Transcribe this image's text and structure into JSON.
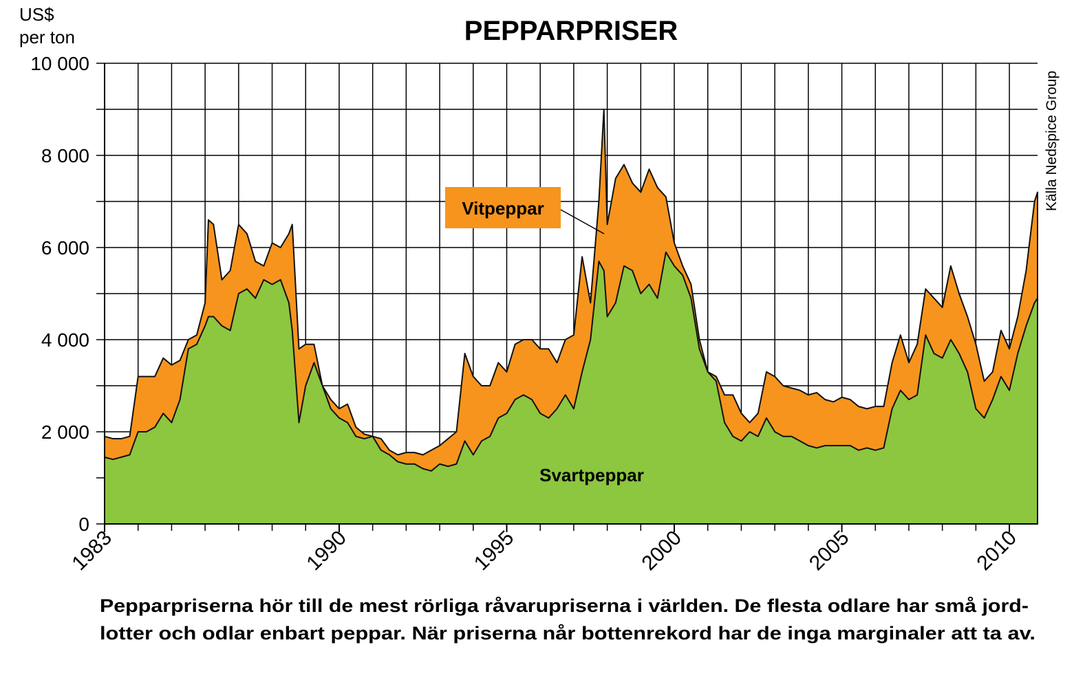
{
  "chart_data": {
    "type": "area",
    "title": "PEPPARPRISER",
    "y_label": [
      "US$",
      "per ton"
    ],
    "source": "Källa Nedspice Group",
    "caption": [
      "Pepparpriserna hör till de mest rörliga råvarupriserna i världen. De flesta odlare har små jord-",
      "lotter och odlar enbart peppar. När priserna når bottenrekord har de inga marginaler att ta av."
    ],
    "x": [
      1983,
      1983.25,
      1983.5,
      1983.75,
      1984,
      1984.25,
      1984.5,
      1984.75,
      1985,
      1985.25,
      1985.5,
      1985.75,
      1986,
      1986.1,
      1986.25,
      1986.5,
      1986.75,
      1987,
      1987.25,
      1987.5,
      1987.75,
      1988,
      1988.25,
      1988.5,
      1988.6,
      1988.8,
      1989,
      1989.25,
      1989.5,
      1989.75,
      1990,
      1990.25,
      1990.5,
      1990.75,
      1991,
      1991.25,
      1991.5,
      1991.75,
      1992,
      1992.25,
      1992.5,
      1992.75,
      1993,
      1993.25,
      1993.5,
      1993.75,
      1994,
      1994.25,
      1994.5,
      1994.75,
      1995,
      1995.25,
      1995.5,
      1995.75,
      1996,
      1996.25,
      1996.5,
      1996.75,
      1997,
      1997.25,
      1997.5,
      1997.75,
      1997.9,
      1998,
      1998.25,
      1998.5,
      1998.75,
      1999,
      1999.25,
      1999.5,
      1999.75,
      2000,
      2000.25,
      2000.5,
      2000.75,
      2001,
      2001.25,
      2001.5,
      2001.75,
      2002,
      2002.25,
      2002.5,
      2002.75,
      2003,
      2003.25,
      2003.5,
      2003.75,
      2004,
      2004.25,
      2004.5,
      2004.75,
      2005,
      2005.25,
      2005.5,
      2005.75,
      2006,
      2006.25,
      2006.5,
      2006.75,
      2007,
      2007.25,
      2007.5,
      2007.75,
      2008,
      2008.25,
      2008.5,
      2008.75,
      2009,
      2009.25,
      2009.5,
      2009.75,
      2010,
      2010.25,
      2010.5,
      2010.75,
      2010.84
    ],
    "series": [
      {
        "name": "Vitpeppar",
        "color": "#f7941d",
        "values": [
          1900,
          1850,
          1850,
          1900,
          3200,
          3200,
          3200,
          3600,
          3450,
          3550,
          4000,
          4100,
          4800,
          6600,
          6500,
          5300,
          5500,
          6500,
          6300,
          5700,
          5600,
          6100,
          6000,
          6300,
          6500,
          3800,
          3900,
          3900,
          3000,
          2700,
          2500,
          2600,
          2100,
          1950,
          1900,
          1850,
          1600,
          1500,
          1550,
          1550,
          1500,
          1600,
          1700,
          1850,
          2000,
          3700,
          3200,
          3000,
          3000,
          3500,
          3300,
          3900,
          4000,
          4000,
          3800,
          3800,
          3500,
          4000,
          4100,
          5800,
          4800,
          7000,
          9000,
          6500,
          7500,
          7800,
          7400,
          7200,
          7700,
          7300,
          7100,
          6100,
          5600,
          5200,
          4000,
          3300,
          3200,
          2800,
          2800,
          2400,
          2200,
          2400,
          3300,
          3200,
          3000,
          2950,
          2900,
          2800,
          2850,
          2700,
          2650,
          2750,
          2700,
          2550,
          2500,
          2550,
          2550,
          3500,
          4100,
          3500,
          3900,
          5100,
          4900,
          4700,
          5600,
          5000,
          4500,
          3900,
          3100,
          3300,
          4200,
          3800,
          4500,
          5500,
          7000,
          7200
        ]
      },
      {
        "name": "Svartpeppar",
        "color": "#8dc63f",
        "values": [
          1450,
          1400,
          1450,
          1500,
          2000,
          2000,
          2100,
          2400,
          2200,
          2700,
          3800,
          3900,
          4300,
          4500,
          4500,
          4300,
          4200,
          5000,
          5100,
          4900,
          5300,
          5200,
          5300,
          4800,
          4200,
          2200,
          3000,
          3500,
          3000,
          2500,
          2300,
          2200,
          1900,
          1850,
          1900,
          1600,
          1500,
          1350,
          1300,
          1300,
          1200,
          1150,
          1300,
          1250,
          1300,
          1800,
          1500,
          1800,
          1900,
          2300,
          2400,
          2700,
          2800,
          2700,
          2400,
          2300,
          2500,
          2800,
          2500,
          3300,
          4000,
          5700,
          5500,
          4500,
          4800,
          5600,
          5500,
          5000,
          5200,
          4900,
          5900,
          5600,
          5400,
          4900,
          3800,
          3300,
          3100,
          2200,
          1900,
          1800,
          2000,
          1900,
          2300,
          2000,
          1900,
          1900,
          1800,
          1700,
          1650,
          1700,
          1700,
          1700,
          1700,
          1600,
          1650,
          1600,
          1650,
          2500,
          2900,
          2700,
          2800,
          4100,
          3700,
          3600,
          4000,
          3700,
          3300,
          2500,
          2300,
          2700,
          3200,
          2900,
          3700,
          4300,
          4800,
          4900
        ]
      }
    ],
    "xlim": [
      1983,
      2010.84
    ],
    "xticks": [
      1983,
      1990,
      1995,
      2000,
      2005,
      2010
    ],
    "minor_xticks": [
      1983,
      1984,
      1985,
      1986,
      1987,
      1988,
      1989,
      1990,
      1991,
      1992,
      1993,
      1994,
      1995,
      1996,
      1997,
      1998,
      1999,
      2000,
      2001,
      2002,
      2003,
      2004,
      2005,
      2006,
      2007,
      2008,
      2009,
      2010
    ],
    "ylim": [
      0,
      10000
    ],
    "yticks": [
      0,
      {
        "value": 2000,
        "label": "2 000"
      },
      {
        "value": 4000,
        "label": "4 000"
      },
      {
        "value": 6000,
        "label": "6 000"
      },
      {
        "value": 8000,
        "label": "8 000"
      },
      {
        "value": 10000,
        "label": "10 000"
      }
    ],
    "minor_yticks": [
      1000,
      3000,
      5000,
      7000,
      9000
    ],
    "grid": true
  }
}
